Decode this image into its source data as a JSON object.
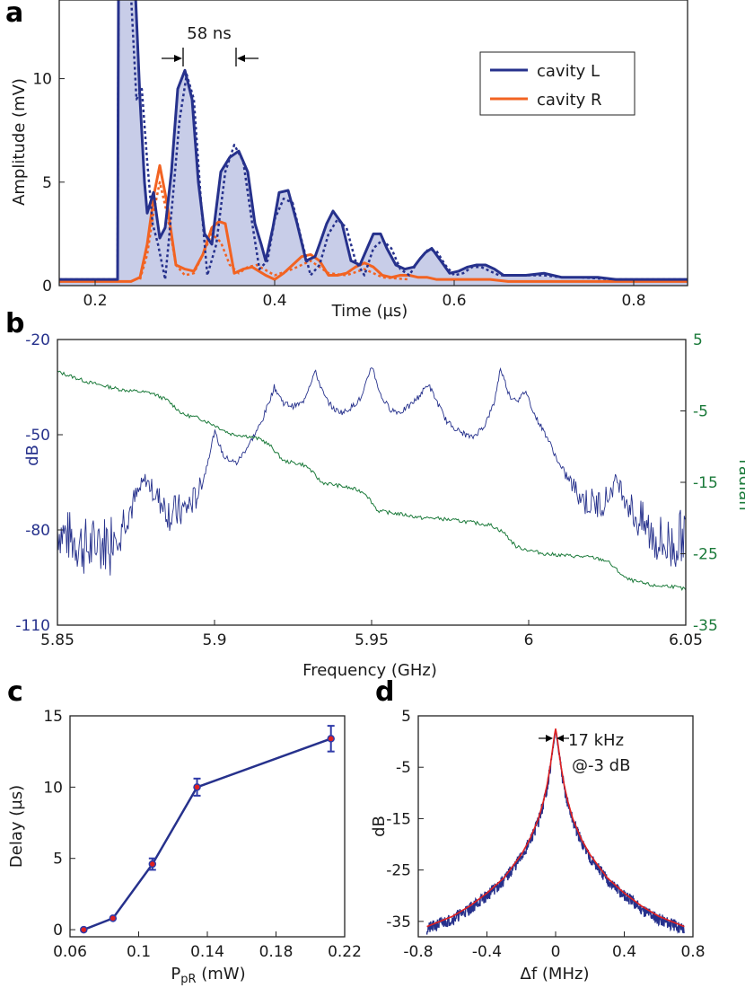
{
  "panels": {
    "a": "a",
    "b": "b",
    "c": "c",
    "d": "d"
  },
  "colors": {
    "blue": "#26318c",
    "orange": "#f26322",
    "fill": "#c8cde8",
    "green": "#1b7a3a",
    "red": "#e02020",
    "errbar": "#2f3aa8"
  },
  "chart_data": [
    {
      "id": "a",
      "type": "line",
      "title": "",
      "xlabel": "Time (µs)",
      "ylabel": "Amplitude (mV)",
      "xlim": [
        0.16,
        0.86
      ],
      "ylim": [
        0,
        13.8
      ],
      "xticks": [
        0.2,
        0.4,
        0.6,
        0.8
      ],
      "xtick_labels": [
        "0.2",
        "0.4",
        "0.6",
        "0.8"
      ],
      "yticks": [
        0,
        5,
        10
      ],
      "ytick_labels": [
        "0",
        "5",
        "10"
      ],
      "legend": {
        "position": "top-right",
        "entries": [
          "cavity L",
          "cavity R"
        ]
      },
      "annotation": "58 ns",
      "series": [
        {
          "name": "cavity L",
          "style": "solid",
          "x": [
            0.16,
            0.225,
            0.226,
            0.235,
            0.245,
            0.25,
            0.255,
            0.258,
            0.265,
            0.272,
            0.278,
            0.285,
            0.292,
            0.3,
            0.308,
            0.315,
            0.322,
            0.33,
            0.34,
            0.35,
            0.36,
            0.37,
            0.378,
            0.385,
            0.39,
            0.398,
            0.405,
            0.415,
            0.425,
            0.435,
            0.445,
            0.45,
            0.458,
            0.465,
            0.475,
            0.485,
            0.495,
            0.505,
            0.51,
            0.518,
            0.525,
            0.535,
            0.545,
            0.555,
            0.562,
            0.568,
            0.575,
            0.585,
            0.595,
            0.605,
            0.615,
            0.625,
            0.635,
            0.645,
            0.655,
            0.665,
            0.68,
            0.7,
            0.72,
            0.74,
            0.76,
            0.78,
            0.8,
            0.82,
            0.86
          ],
          "y": [
            0.3,
            0.3,
            14,
            14,
            14,
            9,
            5,
            3.5,
            4.5,
            2.3,
            2.8,
            5.5,
            9.5,
            10.4,
            9,
            5,
            2.5,
            2,
            5.5,
            6.2,
            6.5,
            5.5,
            3,
            2,
            1.2,
            2.8,
            4.5,
            4.6,
            3,
            1.2,
            1.4,
            2,
            3,
            3.6,
            3,
            1.2,
            1,
            2,
            2.5,
            2.5,
            1.8,
            1,
            0.8,
            0.9,
            1.3,
            1.6,
            1.8,
            1.2,
            0.6,
            0.7,
            0.9,
            1,
            1,
            0.8,
            0.5,
            0.5,
            0.5,
            0.6,
            0.4,
            0.4,
            0.4,
            0.3,
            0.3,
            0.3,
            0.3
          ]
        },
        {
          "name": "cavity L (dotted)",
          "style": "dotted",
          "x": [
            0.16,
            0.225,
            0.226,
            0.24,
            0.246,
            0.252,
            0.258,
            0.264,
            0.27,
            0.278,
            0.286,
            0.294,
            0.302,
            0.31,
            0.318,
            0.325,
            0.335,
            0.345,
            0.355,
            0.365,
            0.375,
            0.383,
            0.392,
            0.4,
            0.41,
            0.42,
            0.43,
            0.44,
            0.45,
            0.46,
            0.47,
            0.48,
            0.49,
            0.5,
            0.51,
            0.52,
            0.53,
            0.54,
            0.55,
            0.56,
            0.57,
            0.58,
            0.59,
            0.6,
            0.61,
            0.62,
            0.63,
            0.64,
            0.65,
            0.66,
            0.68,
            0.7,
            0.72,
            0.74,
            0.78,
            0.86
          ],
          "y": [
            0.3,
            0.3,
            14,
            14,
            9,
            9.5,
            6,
            3,
            2,
            0.3,
            4,
            8,
            10.2,
            9,
            4,
            0.5,
            2,
            5.5,
            6.8,
            6,
            3,
            0.8,
            1.2,
            3.2,
            4.2,
            4,
            2.2,
            0.5,
            1,
            2.5,
            3.2,
            2.8,
            1.2,
            0.5,
            1.8,
            2.2,
            1.8,
            0.8,
            0.5,
            1.2,
            1.7,
            1.7,
            1,
            0.5,
            0.6,
            0.9,
            0.9,
            0.7,
            0.5,
            0.5,
            0.5,
            0.5,
            0.4,
            0.4,
            0.3,
            0.3
          ]
        },
        {
          "name": "cavity R",
          "style": "solid",
          "x": [
            0.16,
            0.24,
            0.25,
            0.258,
            0.266,
            0.272,
            0.28,
            0.29,
            0.3,
            0.31,
            0.32,
            0.33,
            0.338,
            0.345,
            0.355,
            0.365,
            0.375,
            0.39,
            0.4,
            0.41,
            0.42,
            0.43,
            0.44,
            0.45,
            0.46,
            0.47,
            0.48,
            0.49,
            0.5,
            0.51,
            0.52,
            0.53,
            0.54,
            0.55,
            0.56,
            0.57,
            0.58,
            0.6,
            0.62,
            0.64,
            0.66,
            0.7,
            0.74,
            0.78,
            0.86
          ],
          "y": [
            0.2,
            0.2,
            0.4,
            2,
            4.5,
            5.8,
            4,
            1,
            0.8,
            0.7,
            1.5,
            2.8,
            3.1,
            3,
            0.6,
            0.8,
            0.9,
            0.5,
            0.3,
            0.6,
            1,
            1.4,
            1.5,
            1.2,
            0.5,
            0.5,
            0.6,
            0.9,
            1.1,
            0.9,
            0.5,
            0.4,
            0.5,
            0.5,
            0.4,
            0.4,
            0.3,
            0.3,
            0.3,
            0.3,
            0.2,
            0.2,
            0.2,
            0.2,
            0.2
          ]
        },
        {
          "name": "cavity R (dotted)",
          "style": "dotted",
          "x": [
            0.25,
            0.258,
            0.265,
            0.272,
            0.28,
            0.29,
            0.3,
            0.31,
            0.32,
            0.33,
            0.34,
            0.35,
            0.36,
            0.37,
            0.38,
            0.4,
            0.42,
            0.44,
            0.46,
            0.48,
            0.5,
            0.52,
            0.55
          ],
          "y": [
            0.3,
            1.5,
            3.5,
            5,
            3.5,
            1,
            0.5,
            0.6,
            1.5,
            2.5,
            2.1,
            1,
            0.6,
            0.9,
            1,
            0.5,
            0.8,
            1.2,
            0.6,
            0.5,
            0.8,
            0.4,
            0.3
          ]
        }
      ]
    },
    {
      "id": "b",
      "type": "line",
      "title": "",
      "xlabel": "Frequency (GHz)",
      "ylabel": "dB",
      "y2label": "radian",
      "xlim": [
        5.85,
        6.05
      ],
      "ylim": [
        -110,
        -20
      ],
      "y2lim": [
        -35,
        5
      ],
      "xticks": [
        5.85,
        5.9,
        5.95,
        6,
        6.05
      ],
      "xtick_labels": [
        "5.85",
        "5.9",
        "5.95",
        "6",
        "6.05"
      ],
      "yticks": [
        -110,
        -80,
        -50,
        -20
      ],
      "ytick_labels": [
        "-110",
        "-80",
        "-50",
        "-20"
      ],
      "y2ticks": [
        5,
        -5,
        -15,
        -25,
        -35
      ],
      "y2tick_labels": [
        "5",
        "-5",
        "-15",
        "-25",
        "-35"
      ],
      "series": [
        {
          "name": "dB",
          "axis": "left",
          "resonances": [
            5.878,
            5.9,
            5.919,
            5.932,
            5.95,
            5.968,
            5.991,
            5.999,
            6.028
          ],
          "x": [
            5.85,
            5.855,
            5.86,
            5.865,
            5.87,
            5.874,
            5.878,
            5.882,
            5.886,
            5.89,
            5.894,
            5.897,
            5.9,
            5.903,
            5.907,
            5.911,
            5.915,
            5.919,
            5.922,
            5.925,
            5.928,
            5.932,
            5.935,
            5.938,
            5.941,
            5.944,
            5.947,
            5.95,
            5.953,
            5.956,
            5.959,
            5.962,
            5.965,
            5.968,
            5.971,
            5.974,
            5.978,
            5.982,
            5.986,
            5.989,
            5.991,
            5.994,
            5.997,
            5.999,
            6.002,
            6.006,
            6.01,
            6.014,
            6.018,
            6.022,
            6.025,
            6.028,
            6.031,
            6.034,
            6.038,
            6.042,
            6.046,
            6.05
          ],
          "y": [
            -80,
            -83,
            -86,
            -84,
            -78,
            -72,
            -64,
            -70,
            -75,
            -74,
            -70,
            -62,
            -49,
            -57,
            -59,
            -53,
            -46,
            -35,
            -40,
            -41,
            -40,
            -30,
            -38,
            -42,
            -43,
            -41,
            -38,
            -28,
            -38,
            -42,
            -43,
            -41,
            -38,
            -34,
            -40,
            -46,
            -49,
            -51,
            -47,
            -40,
            -29,
            -38,
            -39,
            -36,
            -44,
            -51,
            -60,
            -66,
            -71,
            -72,
            -70,
            -64,
            -70,
            -76,
            -80,
            -84,
            -85,
            -80
          ]
        },
        {
          "name": "radian",
          "axis": "right",
          "x": [
            5.85,
            5.86,
            5.87,
            5.88,
            5.885,
            5.89,
            5.895,
            5.9,
            5.905,
            5.91,
            5.915,
            5.918,
            5.922,
            5.928,
            5.93,
            5.934,
            5.94,
            5.945,
            5.948,
            5.952,
            5.96,
            5.966,
            5.97,
            5.98,
            5.988,
            5.992,
            5.996,
            6.0,
            6.005,
            6.01,
            6.02,
            6.025,
            6.031,
            6.035,
            6.04,
            6.045,
            6.05
          ],
          "y": [
            0.5,
            -1,
            -2,
            -2.5,
            -3.5,
            -5.5,
            -6,
            -7,
            -8.2,
            -8.5,
            -9,
            -10,
            -12,
            -12.5,
            -13,
            -15,
            -15.5,
            -16,
            -16.5,
            -19,
            -19.5,
            -20,
            -20,
            -20.5,
            -21,
            -22,
            -24,
            -24.5,
            -25,
            -25.2,
            -25.5,
            -26,
            -28.5,
            -29,
            -29.5,
            -29.5,
            -30
          ]
        }
      ]
    },
    {
      "id": "c",
      "type": "line",
      "title": "",
      "xlabel": "P",
      "xlabel_sub": "pR",
      "xlabel_unit": " (mW)",
      "ylabel": "Delay (µs)",
      "xlim": [
        0.06,
        0.22
      ],
      "ylim": [
        -0.5,
        15
      ],
      "xticks": [
        0.06,
        0.1,
        0.14,
        0.18,
        0.22
      ],
      "xtick_labels": [
        "0.06",
        "0.1",
        "0.14",
        "0.18",
        "0.22"
      ],
      "yticks": [
        0,
        5,
        10,
        15
      ],
      "ytick_labels": [
        "0",
        "5",
        "10",
        "15"
      ],
      "series": [
        {
          "name": "delay",
          "x": [
            0.068,
            0.085,
            0.108,
            0.134,
            0.212
          ],
          "y": [
            0,
            0.8,
            4.6,
            10,
            13.4
          ],
          "err": [
            0,
            0,
            0.4,
            0.6,
            0.9
          ]
        }
      ]
    },
    {
      "id": "d",
      "type": "line",
      "title": "",
      "xlabel": "Δf (MHz)",
      "ylabel": "dB",
      "xlim": [
        -0.8,
        0.8
      ],
      "ylim": [
        -38,
        5
      ],
      "xticks": [
        -0.8,
        -0.4,
        0,
        0.4,
        0.8
      ],
      "xtick_labels": [
        "-0.8",
        "-0.4",
        "0",
        "0.4",
        "0.8"
      ],
      "yticks": [
        5,
        -5,
        -15,
        -25,
        -35
      ],
      "ytick_labels": [
        "5",
        "-5",
        "-15",
        "-25",
        "-35"
      ],
      "annotation": [
        "17 kHz",
        "@-3 dB"
      ],
      "series": [
        {
          "name": "data",
          "x": [
            -0.75,
            -0.6,
            -0.5,
            -0.4,
            -0.3,
            -0.2,
            -0.15,
            -0.1,
            -0.07,
            -0.05,
            -0.03,
            -0.02,
            -0.01,
            -0.005,
            0,
            0.005,
            0.01,
            0.02,
            0.03,
            0.05,
            0.07,
            0.1,
            0.15,
            0.2,
            0.3,
            0.4,
            0.5,
            0.6,
            0.75
          ],
          "y": [
            -36.5,
            -34.5,
            -32.5,
            -30,
            -27,
            -22.5,
            -19.5,
            -15.5,
            -12,
            -9,
            -5,
            -2.5,
            0,
            1.2,
            2,
            1.2,
            0,
            -2.5,
            -5,
            -9,
            -12,
            -15.5,
            -19.5,
            -22.5,
            -27,
            -30,
            -32.5,
            -34.5,
            -36.5
          ]
        },
        {
          "name": "fit",
          "x": [
            -0.75,
            -0.6,
            -0.5,
            -0.4,
            -0.3,
            -0.2,
            -0.15,
            -0.1,
            -0.07,
            -0.05,
            -0.03,
            -0.02,
            -0.01,
            -0.005,
            0,
            0.005,
            0.01,
            0.02,
            0.03,
            0.05,
            0.07,
            0.1,
            0.15,
            0.2,
            0.3,
            0.4,
            0.5,
            0.6,
            0.75
          ],
          "y": [
            -36,
            -34,
            -32,
            -29.5,
            -26.5,
            -22,
            -19,
            -15,
            -11.5,
            -8.5,
            -4.5,
            -2,
            0.5,
            1.5,
            2.5,
            1.5,
            0.5,
            -2,
            -4.5,
            -8.5,
            -11.5,
            -15,
            -19,
            -22,
            -26.5,
            -29.5,
            -32,
            -34,
            -36
          ]
        }
      ]
    }
  ]
}
